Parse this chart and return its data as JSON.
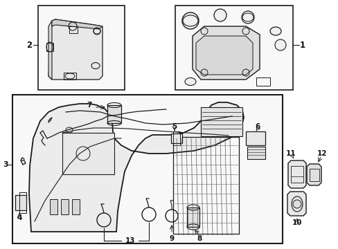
{
  "bg": "#ffffff",
  "lc": "#1a1a1a",
  "figsize": [
    4.89,
    3.6
  ],
  "dpi": 100
}
